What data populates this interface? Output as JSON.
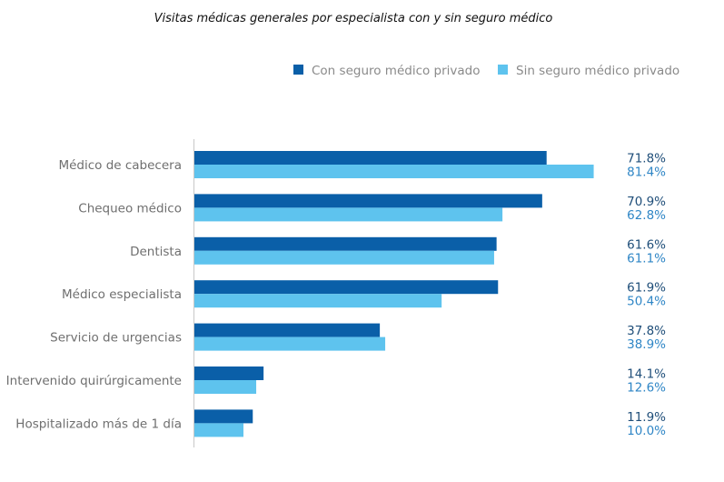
{
  "chart_data": {
    "type": "bar",
    "orientation": "horizontal",
    "title": "Visitas médicas generales por especialista con y sin seguro médico",
    "categories": [
      "Médico de cabecera",
      "Chequeo médico",
      "Dentista",
      "Médico especialista",
      "Servicio de urgencias",
      "Intervenido quirúrgicamente",
      "Hospitalizado más de 1 día"
    ],
    "series": [
      {
        "name": "Con seguro médico privado",
        "color": "#0a5fa8",
        "label_color": "#1f4e79",
        "values": [
          71.8,
          70.9,
          61.6,
          61.9,
          37.8,
          14.1,
          11.9
        ],
        "labels": [
          "71.8%",
          "70.9%",
          "61.6%",
          "61.9%",
          "37.8%",
          "14.1%",
          "11.9%"
        ]
      },
      {
        "name": "Sin seguro médico privado",
        "color": "#5ec3ee",
        "label_color": "#2f86c6",
        "values": [
          81.4,
          62.8,
          61.1,
          50.4,
          38.9,
          12.6,
          10.0
        ],
        "labels": [
          "81.4%",
          "62.8%",
          "61.1%",
          "50.4%",
          "38.9%",
          "12.6%",
          "10.0%"
        ]
      }
    ],
    "xlim": [
      0,
      100
    ],
    "xlabel": "",
    "ylabel": "",
    "grid": false,
    "legend_position": "top-right",
    "axis_color": "#c8c8c8"
  }
}
